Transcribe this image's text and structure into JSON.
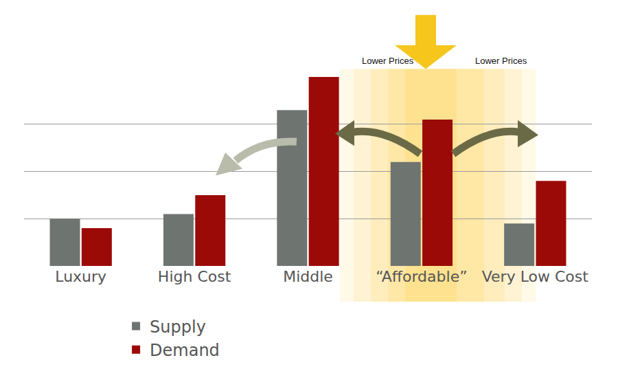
{
  "chart_data": {
    "type": "bar",
    "categories": [
      "Luxury",
      "High Cost",
      "Middle",
      "“Affordable”",
      "Very Low Cost"
    ],
    "series": [
      {
        "name": "Supply",
        "color": "#6e7470",
        "values": [
          1.0,
          1.1,
          3.3,
          2.2,
          0.9
        ]
      },
      {
        "name": "Demand",
        "color": "#9b0a07",
        "values": [
          0.8,
          1.5,
          4.0,
          3.1,
          1.8
        ]
      }
    ],
    "ylim": [
      0,
      4
    ],
    "yticks": [
      0,
      1,
      2,
      3,
      4
    ],
    "grid": true,
    "tick_labels": "x",
    "legend": "bottom",
    "annotations": [
      "Lower Prices",
      "Lower Prices"
    ]
  }
}
